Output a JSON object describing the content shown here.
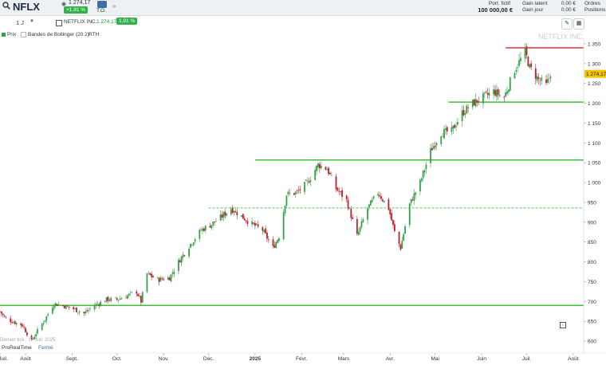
{
  "header": {
    "ticker": "NFLX",
    "price": "1 274,17",
    "change": "+1,91 %",
    "to_label": "T.O.",
    "portfolio_label": "Port. fictif",
    "portfolio_value": "100 000,00 €",
    "gain_latent_label": "Gain latent",
    "gain_jour_label": "Gain jour",
    "gain_latent_value": "0,00 €",
    "gain_jour_value": "0,00 €",
    "ordres_label": "Ordres",
    "positions_label": "Positions"
  },
  "toolbar": {
    "period": "1 J",
    "instrument_name": "NETFLIX INC.",
    "instrument_price": "1 274,17",
    "instrument_change": "1,91 %"
  },
  "legend": {
    "price_label": "Prix",
    "bollinger_label": "Bandes de Bollinger (20 2)",
    "rth_label": "RTH"
  },
  "watermark": "NETFLIX INC.",
  "footer": {
    "last_tick": "Dernier tick : 17 Juil. 2025",
    "brand": "ProRealTime",
    "status": "Fermé"
  },
  "colors": {
    "up": "#33a34a",
    "down": "#b8232f",
    "support_line": "#3fbf35",
    "resistance_line": "#e0323c",
    "price_tag": "#f5c400"
  },
  "chart_data": {
    "type": "candlestick",
    "ylim": [
      570,
      1360
    ],
    "yticks": [
      "1 350",
      "1 300",
      "1 250",
      "1 200",
      "1 150",
      "1 100",
      "1 050",
      "1 000",
      "950",
      "900",
      "850",
      "800",
      "750",
      "700",
      "650",
      "600"
    ],
    "ytick_values": [
      1350,
      1300,
      1250,
      1200,
      1150,
      1100,
      1050,
      1000,
      950,
      900,
      850,
      800,
      750,
      700,
      650,
      600
    ],
    "current_price_label": "1 274,17",
    "current_price": 1274.17,
    "x_start": "2024-07-15",
    "x_end": "2025-08-08",
    "xticks": [
      {
        "label": "Juil.",
        "date": "2024-07-15"
      },
      {
        "label": "Août",
        "date": "2024-08-01"
      },
      {
        "label": "Sept.",
        "date": "2024-09-01"
      },
      {
        "label": "Oct.",
        "date": "2024-10-01"
      },
      {
        "label": "Nov.",
        "date": "2024-11-01"
      },
      {
        "label": "Déc.",
        "date": "2024-12-01"
      },
      {
        "label": "2025",
        "date": "2025-01-01"
      },
      {
        "label": "Févr.",
        "date": "2025-02-01"
      },
      {
        "label": "Mars",
        "date": "2025-03-01"
      },
      {
        "label": "Avr.",
        "date": "2025-04-01"
      },
      {
        "label": "Mai",
        "date": "2025-05-01"
      },
      {
        "label": "Juin",
        "date": "2025-06-01"
      },
      {
        "label": "Juil.",
        "date": "2025-07-01"
      },
      {
        "label": "Août",
        "date": "2025-08-01"
      }
    ],
    "hlines": [
      {
        "name": "support-690",
        "value": 690,
        "from": "2024-07-15",
        "to": "2025-08-08",
        "style": "solid",
        "color": "#3fbf35"
      },
      {
        "name": "level-936",
        "value": 936,
        "from": "2024-12-01",
        "to": "2025-08-08",
        "style": "dashed",
        "color": "#3fbf35"
      },
      {
        "name": "level-1057",
        "value": 1057,
        "from": "2025-01-01",
        "to": "2025-08-08",
        "style": "solid",
        "color": "#3fbf35"
      },
      {
        "name": "level-1203",
        "value": 1203,
        "from": "2025-05-10",
        "to": "2025-08-08",
        "style": "solid",
        "color": "#3fbf35"
      },
      {
        "name": "resistance-1340",
        "value": 1340,
        "from": "2025-06-17",
        "to": "2025-08-08",
        "style": "solid",
        "color": "#e0323c"
      }
    ],
    "series_anchors": [
      {
        "date": "2024-07-15",
        "close": 675
      },
      {
        "date": "2024-07-18",
        "close": 660
      },
      {
        "date": "2024-07-23",
        "close": 650
      },
      {
        "date": "2024-07-30",
        "close": 640
      },
      {
        "date": "2024-08-05",
        "close": 600
      },
      {
        "date": "2024-08-08",
        "close": 620
      },
      {
        "date": "2024-08-14",
        "close": 655
      },
      {
        "date": "2024-08-20",
        "close": 695
      },
      {
        "date": "2024-08-26",
        "close": 690
      },
      {
        "date": "2024-09-03",
        "close": 680
      },
      {
        "date": "2024-09-09",
        "close": 670
      },
      {
        "date": "2024-09-16",
        "close": 690
      },
      {
        "date": "2024-09-24",
        "close": 705
      },
      {
        "date": "2024-10-01",
        "close": 705
      },
      {
        "date": "2024-10-08",
        "close": 715
      },
      {
        "date": "2024-10-14",
        "close": 725
      },
      {
        "date": "2024-10-17",
        "close": 700
      },
      {
        "date": "2024-10-21",
        "close": 770
      },
      {
        "date": "2024-10-28",
        "close": 755
      },
      {
        "date": "2024-11-05",
        "close": 760
      },
      {
        "date": "2024-11-11",
        "close": 800
      },
      {
        "date": "2024-11-18",
        "close": 840
      },
      {
        "date": "2024-11-26",
        "close": 880
      },
      {
        "date": "2024-12-03",
        "close": 895
      },
      {
        "date": "2024-12-10",
        "close": 915
      },
      {
        "date": "2024-12-16",
        "close": 935
      },
      {
        "date": "2024-12-23",
        "close": 915
      },
      {
        "date": "2024-12-30",
        "close": 895
      },
      {
        "date": "2025-01-06",
        "close": 880
      },
      {
        "date": "2025-01-13",
        "close": 835
      },
      {
        "date": "2025-01-17",
        "close": 865
      },
      {
        "date": "2025-01-22",
        "close": 970
      },
      {
        "date": "2025-01-29",
        "close": 975
      },
      {
        "date": "2025-02-05",
        "close": 1000
      },
      {
        "date": "2025-02-12",
        "close": 1045
      },
      {
        "date": "2025-02-18",
        "close": 1035
      },
      {
        "date": "2025-02-24",
        "close": 985
      },
      {
        "date": "2025-03-03",
        "close": 955
      },
      {
        "date": "2025-03-10",
        "close": 865
      },
      {
        "date": "2025-03-17",
        "close": 935
      },
      {
        "date": "2025-03-24",
        "close": 975
      },
      {
        "date": "2025-03-31",
        "close": 935
      },
      {
        "date": "2025-04-04",
        "close": 875
      },
      {
        "date": "2025-04-08",
        "close": 835
      },
      {
        "date": "2025-04-14",
        "close": 945
      },
      {
        "date": "2025-04-21",
        "close": 1000
      },
      {
        "date": "2025-04-28",
        "close": 1080
      },
      {
        "date": "2025-05-05",
        "close": 1125
      },
      {
        "date": "2025-05-12",
        "close": 1130
      },
      {
        "date": "2025-05-19",
        "close": 1175
      },
      {
        "date": "2025-05-26",
        "close": 1200
      },
      {
        "date": "2025-06-02",
        "close": 1215
      },
      {
        "date": "2025-06-09",
        "close": 1230
      },
      {
        "date": "2025-06-16",
        "close": 1215
      },
      {
        "date": "2025-06-23",
        "close": 1285
      },
      {
        "date": "2025-06-30",
        "close": 1330
      },
      {
        "date": "2025-07-03",
        "close": 1290
      },
      {
        "date": "2025-07-09",
        "close": 1260
      },
      {
        "date": "2025-07-14",
        "close": 1245
      },
      {
        "date": "2025-07-17",
        "close": 1274
      }
    ]
  }
}
